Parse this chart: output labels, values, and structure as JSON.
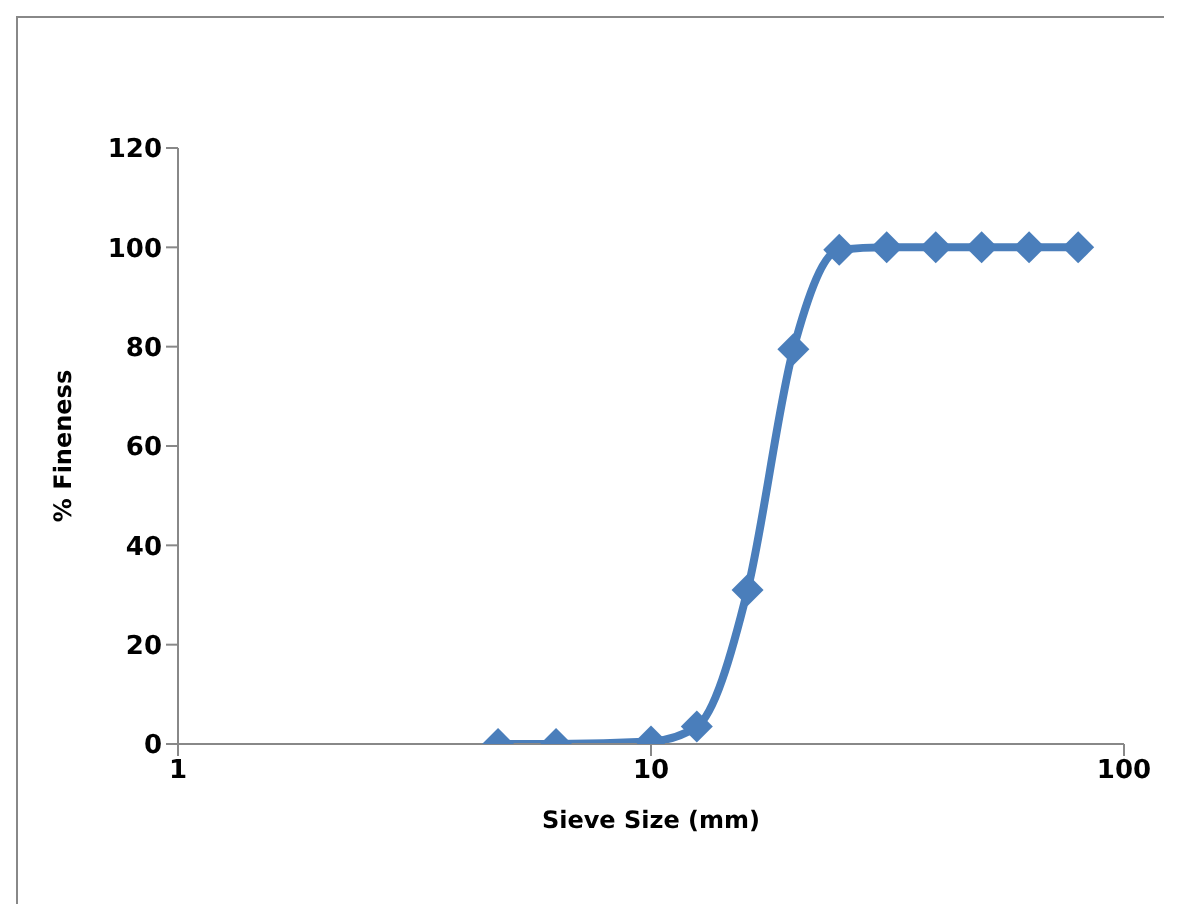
{
  "chart_data": {
    "type": "line",
    "xlabel": "Sieve Size (mm)",
    "ylabel": "% Fineness",
    "log": "x",
    "xlim": [
      1,
      100
    ],
    "xticks": [
      1,
      10,
      100
    ],
    "ylim": [
      0,
      120
    ],
    "yticks": [
      0,
      20,
      40,
      60,
      80,
      100,
      120
    ],
    "grid": false,
    "legend": false,
    "marker": "diamond",
    "line_style": "solid",
    "x": [
      4.75,
      6.3,
      10,
      12.5,
      16,
      20,
      25,
      31.5,
      40,
      50,
      63,
      80
    ],
    "series": [
      {
        "color": "#4a7ebb",
        "values": [
          0,
          0,
          0.5,
          3.5,
          31,
          79.5,
          99.5,
          100,
          100,
          100,
          100,
          100
        ]
      }
    ]
  }
}
